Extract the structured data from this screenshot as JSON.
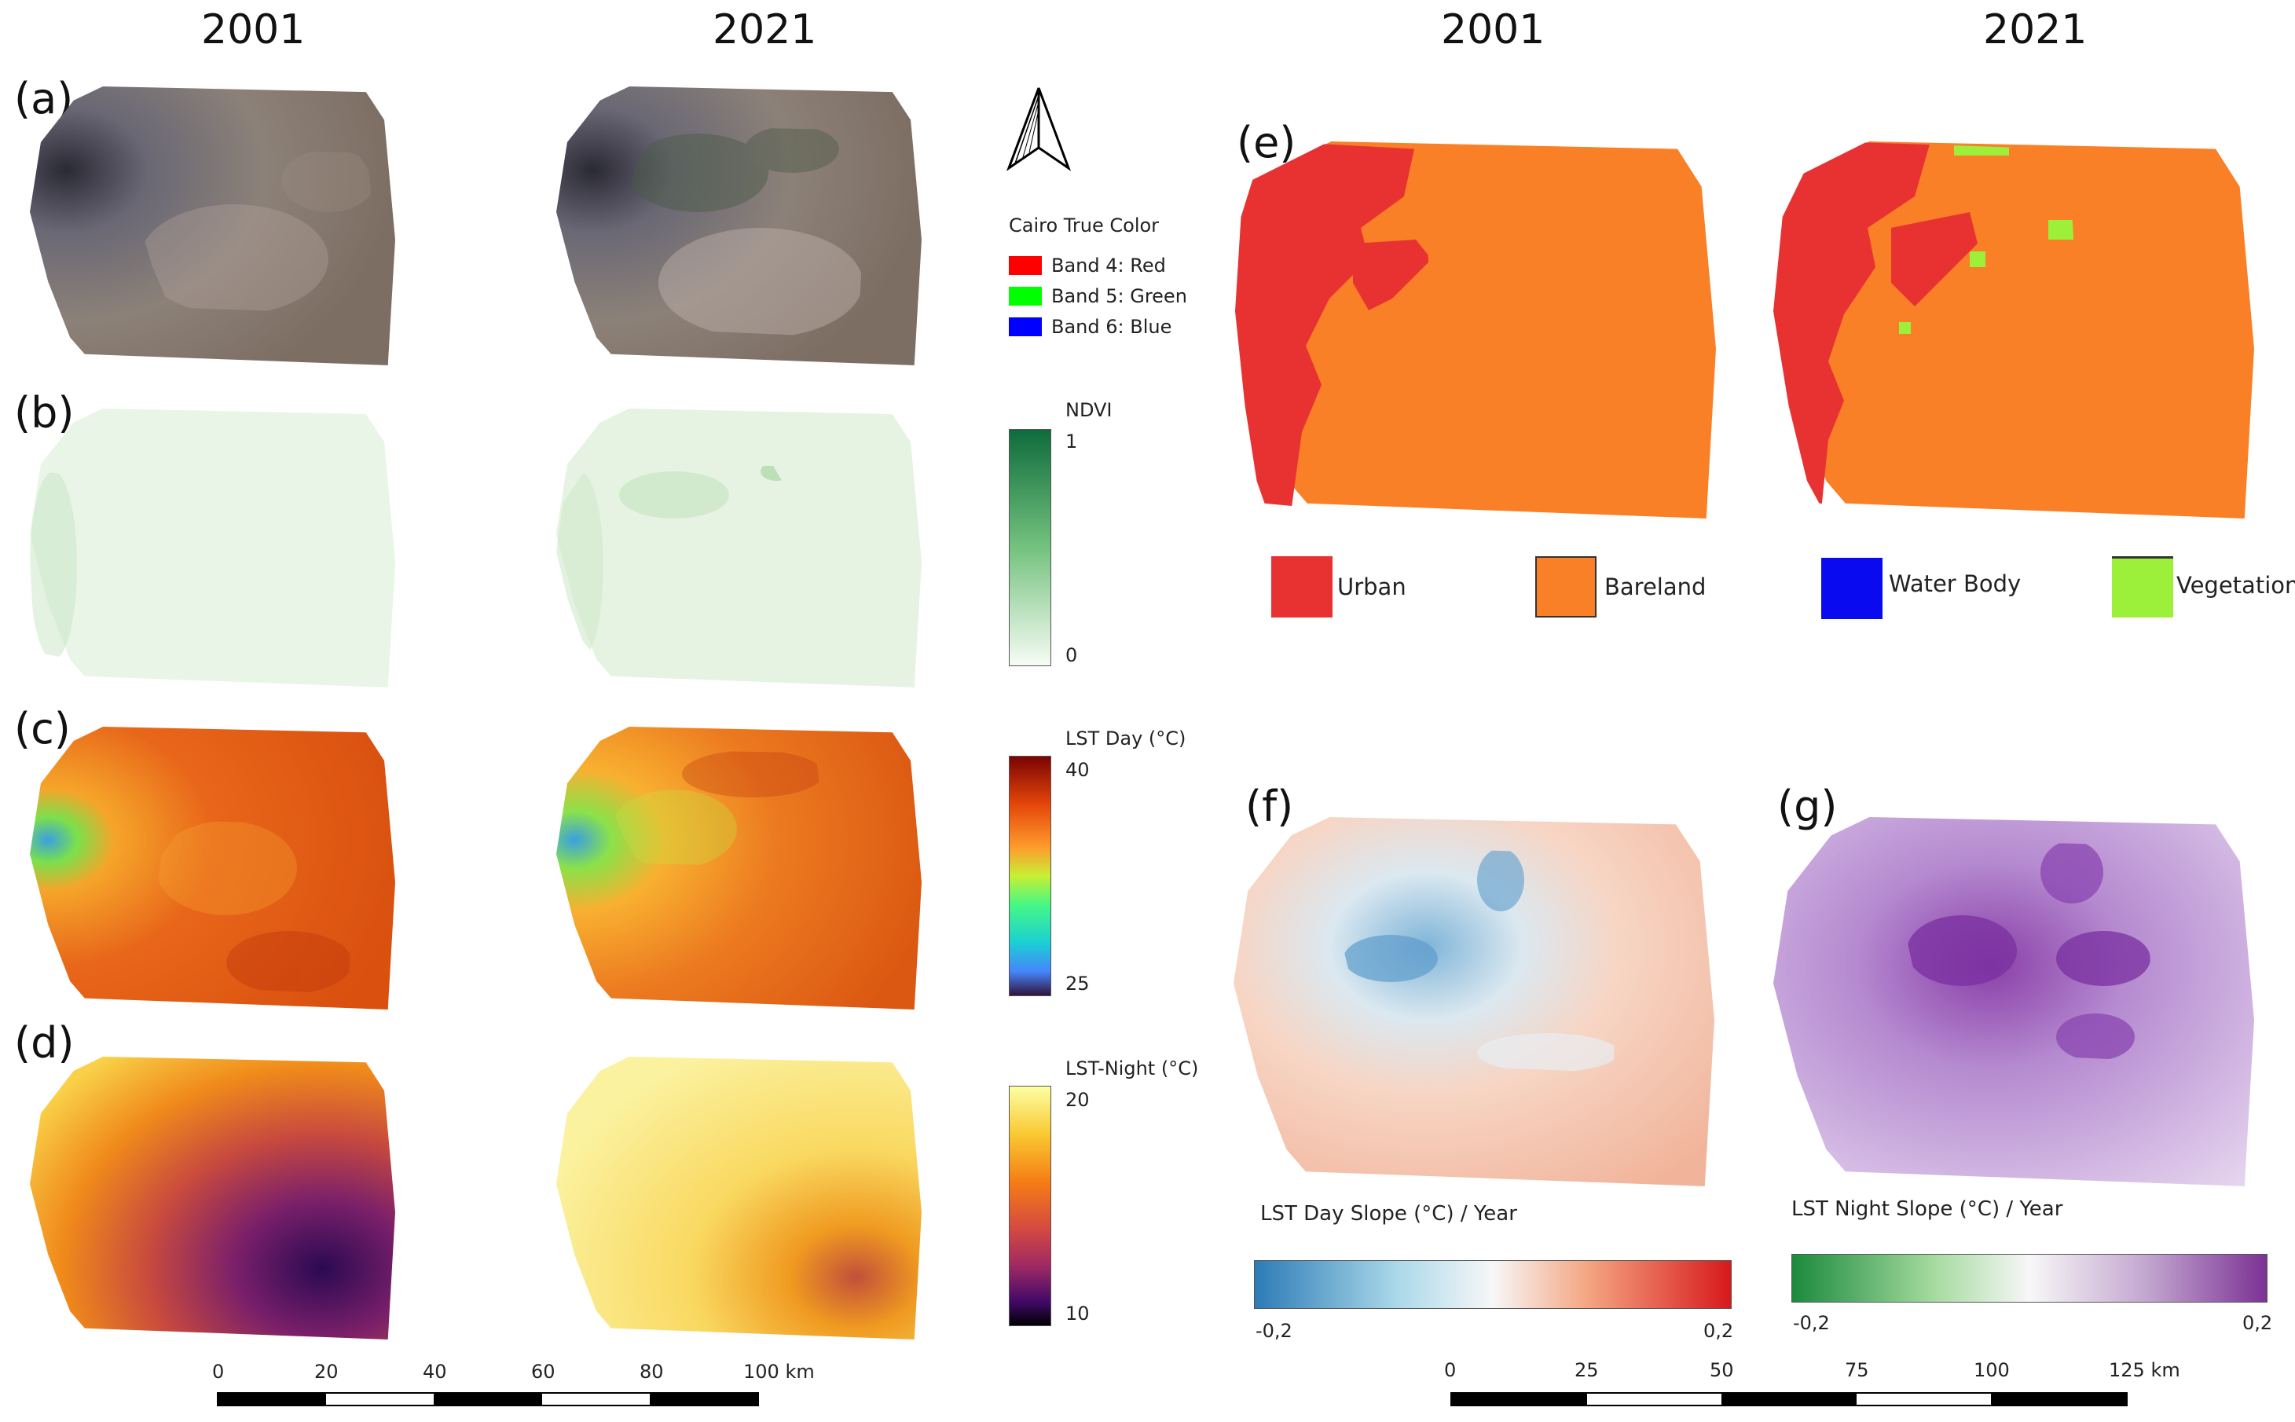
{
  "columns": {
    "left": [
      "2001",
      "2021"
    ],
    "right": [
      "2001",
      "2021"
    ]
  },
  "panel_labels": [
    "(a)",
    "(b)",
    "(c)",
    "(d)",
    "(e)",
    "(f)",
    "(g)"
  ],
  "true_color_legend": {
    "title": "Cairo True Color",
    "items": [
      {
        "label": "Band 4: Red",
        "color": "#ff0000"
      },
      {
        "label": "Band 5: Green",
        "color": "#00ff00"
      },
      {
        "label": "Band 6: Blue",
        "color": "#0000ff"
      }
    ]
  },
  "ndvi_legend": {
    "title": "NDVI",
    "max": "1",
    "min": "0",
    "colors": [
      "#0e6b3c",
      "#f7fcf5"
    ]
  },
  "lst_day_legend": {
    "title": "LST Day (°C)",
    "max": "40",
    "min": "25"
  },
  "lst_night_legend": {
    "title": "LST-Night (°C)",
    "max": "20",
    "min": "10"
  },
  "lulc_legend": [
    {
      "label": "Urban",
      "color": "#e83232"
    },
    {
      "label": "Bareland",
      "color": "#f98026"
    },
    {
      "label": "Water Body",
      "color": "#0a0af0"
    },
    {
      "label": "Vegetation",
      "color": "#9cf03a"
    }
  ],
  "slope_day": {
    "title": "LST Day Slope (°C) / Year",
    "min": "-0,2",
    "max": "0,2"
  },
  "slope_night": {
    "title": "LST Night Slope (°C) / Year",
    "min": "-0,2",
    "max": "0,2"
  },
  "scalebar_left": {
    "ticks": [
      "0",
      "20",
      "40",
      "60",
      "80",
      "100 km"
    ]
  },
  "scalebar_right": {
    "ticks": [
      "0",
      "25",
      "50",
      "75",
      "100",
      "125 km"
    ]
  },
  "north_arrow": "north-arrow-icon"
}
